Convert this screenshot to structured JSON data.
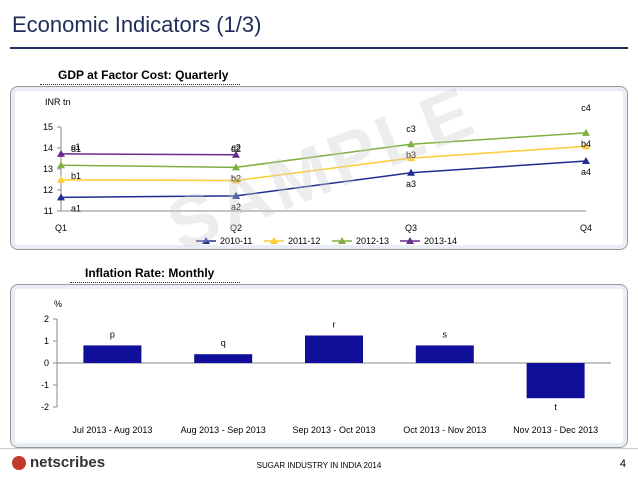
{
  "page": {
    "title": "Economic Indicators (1/3)"
  },
  "footer": {
    "logo_text": "netscribes",
    "text": "SUGAR INDUSTRY IN INDIA 2014",
    "page_number": "4"
  },
  "watermark": "SAMPLE",
  "chart_data": [
    {
      "type": "line",
      "title": "GDP at Factor Cost: Quarterly",
      "ylabel": "INR tn",
      "ylim": [
        11,
        15
      ],
      "yticks": [
        11,
        12,
        13,
        14,
        15
      ],
      "categories": [
        "Q1",
        "Q2",
        "Q3",
        "Q4"
      ],
      "series": [
        {
          "name": "2010-11",
          "color": "#1f2d8f",
          "marker": "triangle",
          "values": [
            11.65,
            11.72,
            12.82,
            13.38
          ],
          "labels": [
            "a1",
            "a2",
            "a3",
            "a4"
          ]
        },
        {
          "name": "2011-12",
          "color": "#ffcc33",
          "marker": "triangle",
          "values": [
            12.48,
            12.45,
            13.52,
            14.08
          ],
          "labels": [
            null,
            null,
            null,
            null
          ]
        },
        {
          "name": "2012-13",
          "color": "#7fb03f",
          "marker": "triangle",
          "values": [
            13.18,
            13.08,
            14.18,
            14.72
          ],
          "labels": [
            "b1",
            "b2",
            "b3",
            "b4"
          ]
        },
        {
          "name": "2013-14",
          "color": "#6a2a8f",
          "marker": "triangle",
          "values": [
            13.72,
            13.68,
            null,
            null
          ],
          "labels": [
            "c1",
            "c2",
            "c3",
            "c4"
          ]
        }
      ],
      "extra_labels": [
        {
          "text": "d1",
          "category": 0,
          "value": 14.0
        },
        {
          "text": "d2",
          "category": 1,
          "value": 14.0
        }
      ],
      "legend": "bottom"
    },
    {
      "type": "bar",
      "title": "Inflation Rate: Monthly",
      "ylabel": "%",
      "ylim": [
        -2,
        2
      ],
      "yticks": [
        -2,
        -1,
        0,
        1,
        2
      ],
      "categories": [
        "Jul 2013 - Aug 2013",
        "Aug 2013 - Sep 2013",
        "Sep 2013 - Oct 2013",
        "Oct 2013 - Nov 2013",
        "Nov 2013 -  Dec 2013"
      ],
      "values": [
        0.8,
        0.4,
        1.25,
        0.8,
        -1.6
      ],
      "labels": [
        "p",
        "q",
        "r",
        "s",
        "t"
      ],
      "color": "#0f0f99"
    }
  ]
}
